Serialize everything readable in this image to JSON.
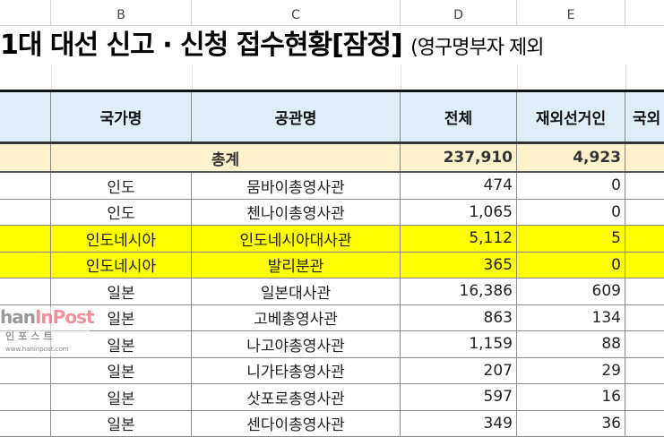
{
  "column_headers": [
    "B",
    "C",
    "D",
    "E"
  ],
  "title": "1대 대선 신고 · 신청 접수현황[잠정]",
  "subtitle": "(영구명부자  제외",
  "table": {
    "headers": [
      "국가명",
      "공관명",
      "전체",
      "재외선거인",
      "국외"
    ],
    "total": {
      "label": "총계",
      "total": "237,910",
      "overseas_voters": "4,923"
    },
    "rows": [
      {
        "country": "인도",
        "mission": "뭄바이총영사관",
        "total": "474",
        "overseas_voters": "0",
        "highlight": false
      },
      {
        "country": "인도",
        "mission": "첸나이총영사관",
        "total": "1,065",
        "overseas_voters": "0",
        "highlight": false
      },
      {
        "country": "인도네시아",
        "mission": "인도네시아대사관",
        "total": "5,112",
        "overseas_voters": "5",
        "highlight": true
      },
      {
        "country": "인도네시아",
        "mission": "발리분관",
        "total": "365",
        "overseas_voters": "0",
        "highlight": true
      },
      {
        "country": "일본",
        "mission": "일본대사관",
        "total": "16,386",
        "overseas_voters": "609",
        "highlight": false
      },
      {
        "country": "일본",
        "mission": "고베총영사관",
        "total": "863",
        "overseas_voters": "134",
        "highlight": false
      },
      {
        "country": "일본",
        "mission": "나고야총영사관",
        "total": "1,159",
        "overseas_voters": "88",
        "highlight": false
      },
      {
        "country": "일본",
        "mission": "니가타총영사관",
        "total": "207",
        "overseas_voters": "29",
        "highlight": false
      },
      {
        "country": "일본",
        "mission": "삿포로총영사관",
        "total": "597",
        "overseas_voters": "16",
        "highlight": false
      },
      {
        "country": "일본",
        "mission": "센다이총영사관",
        "total": "349",
        "overseas_voters": "36",
        "highlight": false
      }
    ]
  },
  "colors": {
    "header_bg": "#dfedf7",
    "total_bg": "#fff2cc",
    "highlight": "#ffff00"
  },
  "watermark": {
    "logo": "hanInPost",
    "korean": "인포스트",
    "url": "www.haninpost.com"
  }
}
